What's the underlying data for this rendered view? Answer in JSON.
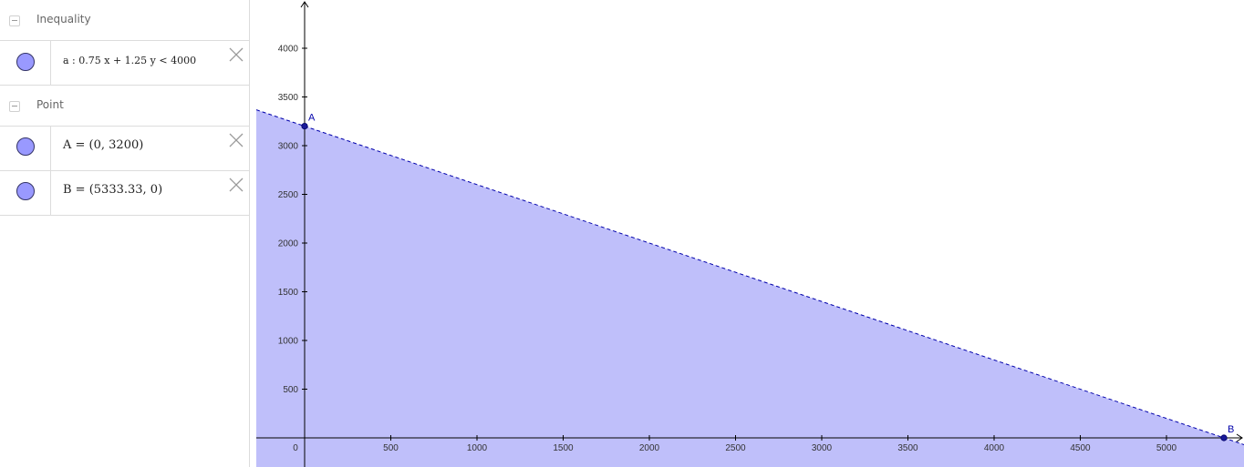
{
  "algebra": {
    "groups": [
      {
        "label": "Inequality",
        "items": [
          {
            "text": "a : 0.75 x + 1.25 y < 4000"
          }
        ]
      },
      {
        "label": "Point",
        "items": [
          {
            "text": "A = (0, 3200)"
          },
          {
            "text": "B = (5333.33, 0)"
          }
        ]
      }
    ]
  },
  "colors": {
    "region_fill": "#bfbffa",
    "line": "#0000aa",
    "marble": "#9999ff"
  },
  "chart_data": {
    "type": "area",
    "inequality": "0.75 x + 1.25 y < 4000",
    "x_ticks": [
      "0",
      "500",
      "1000",
      "1500",
      "2000",
      "2500",
      "3000",
      "3500",
      "4000",
      "4500",
      "5000"
    ],
    "y_ticks": [
      "500",
      "1000",
      "1500",
      "2000",
      "2500",
      "3000",
      "3500",
      "4000"
    ],
    "line": {
      "x": [
        0,
        5333.33
      ],
      "y": [
        3200,
        0
      ],
      "style": "dashed"
    },
    "points": [
      {
        "name": "A",
        "x": 0,
        "y": 3200
      },
      {
        "name": "B",
        "x": 5333.33,
        "y": 0
      }
    ],
    "xlim": [
      -285,
      5420
    ],
    "ylim": [
      -285,
      4500
    ],
    "grid": false
  }
}
